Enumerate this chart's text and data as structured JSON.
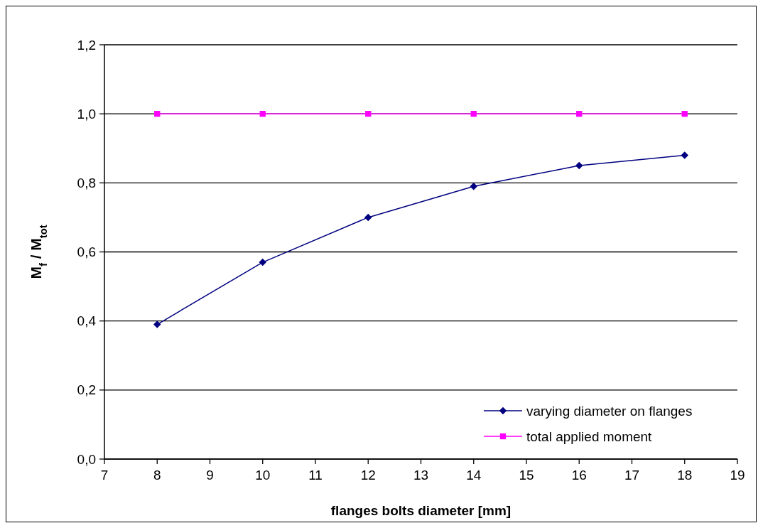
{
  "chart_data": {
    "type": "line",
    "xlabel": "flanges bolts diameter [mm]",
    "ylabel": "M$_{f}$ / M$_{tot}$",
    "xlim": [
      7,
      19
    ],
    "xticks": [
      7,
      8,
      9,
      10,
      11,
      12,
      13,
      14,
      15,
      16,
      17,
      18,
      19
    ],
    "ylim": [
      0,
      1.2
    ],
    "yticks": [
      {
        "value": 0,
        "label": "0,0"
      },
      {
        "value": 0.2,
        "label": "0,2"
      },
      {
        "value": 0.4,
        "label": "0,4"
      },
      {
        "value": 0.6,
        "label": "0,6"
      },
      {
        "value": 0.8,
        "label": "0,8"
      },
      {
        "value": 1.0,
        "label": "1,0"
      },
      {
        "value": 1.2,
        "label": "1,2"
      }
    ],
    "x": [
      8,
      10,
      12,
      14,
      16,
      18
    ],
    "series": [
      {
        "name": "varying diameter on flanges",
        "color": "#000080",
        "marker": "diamond",
        "values": [
          0.39,
          0.57,
          0.7,
          0.79,
          0.85,
          0.88
        ]
      },
      {
        "name": "total applied moment",
        "color": "#ff00ff",
        "marker": "square",
        "values": [
          1.0,
          1.0,
          1.0,
          1.0,
          1.0,
          1.0
        ]
      }
    ],
    "grid": "y",
    "legend": "bottom right",
    "line_style": "solid"
  }
}
